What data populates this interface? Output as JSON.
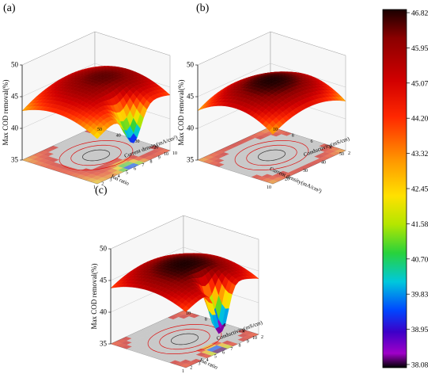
{
  "chart_data": [
    {
      "type": "surface3d",
      "panel_label": "(a)",
      "zlabel": "Max COD removal(%)",
      "xlabel": "Ion ratio",
      "ylabel": "Current density(mA/cm²)",
      "z_ticks": [
        "50",
        "45",
        "40",
        "35"
      ],
      "zlim": [
        35,
        50
      ],
      "x_ticks": [
        "1",
        "2",
        "3",
        "4",
        "5",
        "6",
        "7",
        "8",
        "9",
        "10"
      ],
      "y_ticks": [
        "10",
        "20",
        "30",
        "40",
        "50"
      ],
      "peak_value": 46.5,
      "min_value": 37.0,
      "surface": "saddle-ridge"
    },
    {
      "type": "surface3d",
      "panel_label": "(b)",
      "zlabel": "Max COD removal(%)",
      "xlabel": "Current density(mA/cm²)",
      "ylabel": "Conductivity(mS/cm)",
      "z_ticks": [
        "50",
        "45",
        "40",
        "35"
      ],
      "zlim": [
        35,
        50
      ],
      "x_ticks": [
        "10",
        "20",
        "30",
        "40",
        "50"
      ],
      "y_ticks": [
        "2",
        "4",
        "6",
        "8",
        "10"
      ],
      "peak_value": 46.8,
      "min_value": 38.5,
      "surface": "dome"
    },
    {
      "type": "surface3d",
      "panel_label": "(c)",
      "zlabel": "Max COD removal(%)",
      "xlabel": "Ion ratio",
      "ylabel": "Conductivity(mS/cm)",
      "z_ticks": [
        "50",
        "45",
        "40",
        "35"
      ],
      "zlim": [
        35,
        50
      ],
      "x_ticks": [
        "1",
        "2",
        "3",
        "4",
        "5",
        "6",
        "7",
        "8",
        "9",
        "10"
      ],
      "y_ticks": [
        "2",
        "4",
        "6",
        "8",
        "10"
      ],
      "peak_value": 46.8,
      "min_value": 38.1,
      "surface": "dome-with-dip"
    }
  ],
  "colorbar": {
    "ticks": [
      "46.82",
      "45.95",
      "45.07",
      "44.20",
      "43.32",
      "42.45",
      "41.58",
      "40.70",
      "39.83",
      "38.95",
      "38.08"
    ],
    "min": 38.08,
    "max": 46.82,
    "colors": [
      "#1a0000",
      "#8b0000",
      "#c80000",
      "#ff1a00",
      "#ff8c00",
      "#ffd500",
      "#c8e600",
      "#32d232",
      "#00c8c8",
      "#0050ff",
      "#3200c8",
      "#9600c8",
      "#000000"
    ]
  }
}
